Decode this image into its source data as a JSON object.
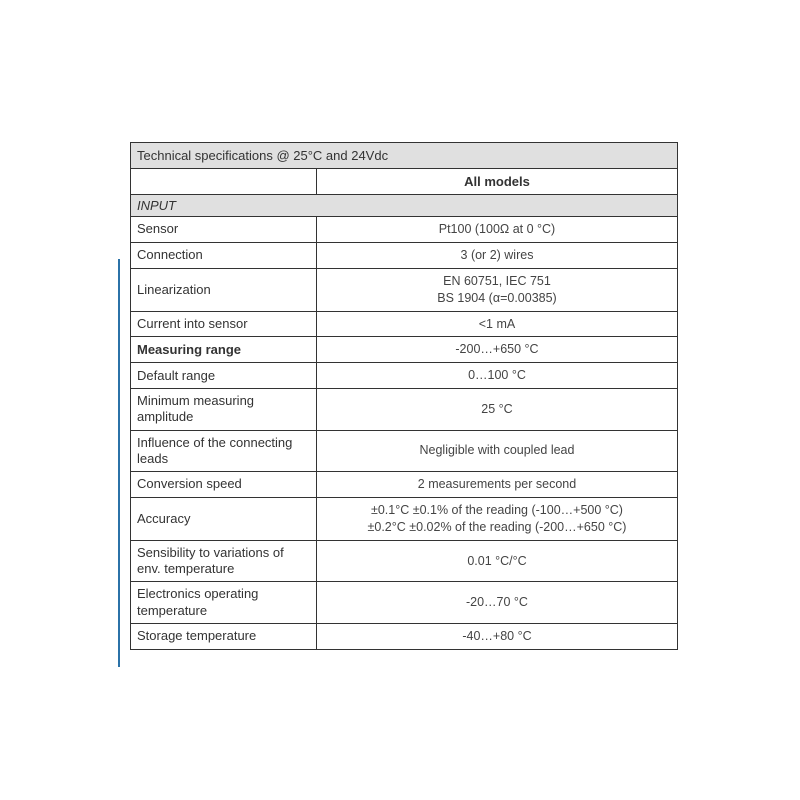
{
  "table": {
    "title": "Technical specifications @ 25°C and 24Vdc",
    "models_header": "All models",
    "section_input": "INPUT",
    "rows": {
      "sensor": {
        "label": "Sensor",
        "value": "Pt100 (100Ω at 0 °C)"
      },
      "connection": {
        "label": "Connection",
        "value": "3 (or 2) wires"
      },
      "linearization": {
        "label": "Linearization",
        "value": "EN 60751, IEC 751\nBS 1904 (α=0.00385)"
      },
      "current": {
        "label": "Current into sensor",
        "value": "<1 mA"
      },
      "measuring_range": {
        "label": "Measuring range",
        "value": "-200…+650 °C"
      },
      "default_range": {
        "label": "Default range",
        "value": "0…100 °C"
      },
      "min_amp": {
        "label": "Minimum measuring amplitude",
        "value": "25 °C"
      },
      "influence": {
        "label": "Influence of the connecting leads",
        "value": "Negligible with coupled lead"
      },
      "conversion": {
        "label": "Conversion speed",
        "value": "2 measurements per second"
      },
      "accuracy": {
        "label": "Accuracy",
        "value": "±0.1°C ±0.1% of the reading (-100…+500 °C)\n±0.2°C ±0.02% of the reading (-200…+650 °C)"
      },
      "sensibility": {
        "label": "Sensibility to variations of env. temperature",
        "value": "0.01 °C/°C"
      },
      "electronics": {
        "label": "Electronics operating temperature",
        "value": "-20…70 °C"
      },
      "storage": {
        "label": "Storage temperature",
        "value": "-40…+80 °C"
      }
    }
  },
  "colors": {
    "border": "#333333",
    "header_bg": "#e0e0e0",
    "text": "#3a3a3a",
    "side_mark": "#2b72a8"
  }
}
